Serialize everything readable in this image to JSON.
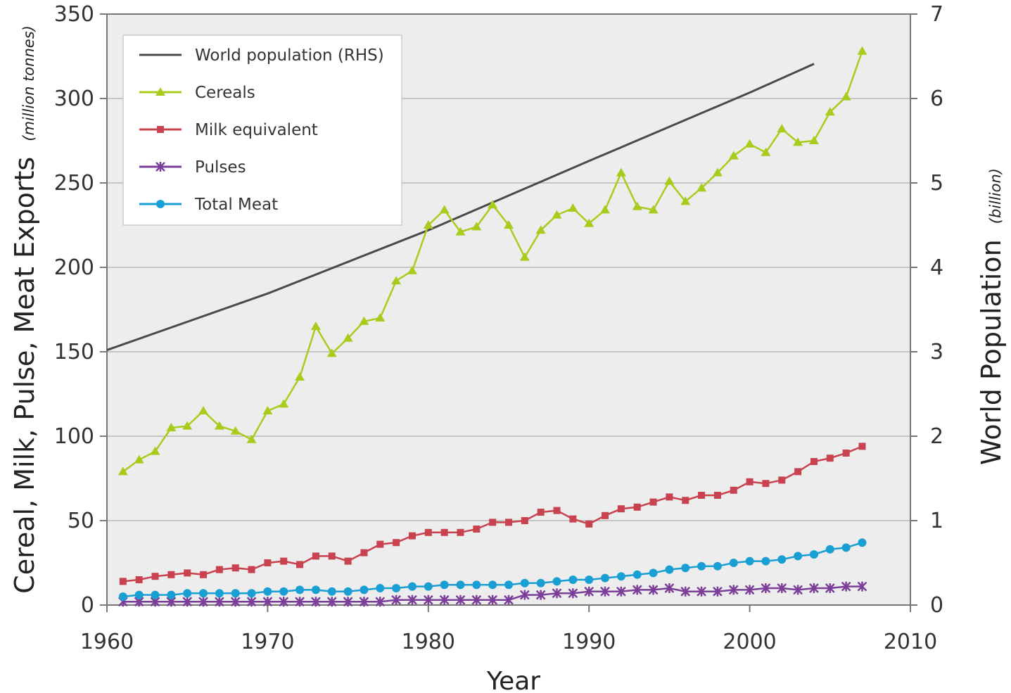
{
  "chart_data": {
    "type": "line",
    "xlabel": "Year",
    "ylabel": "Cereal, Milk, Pulse, Meat Exports",
    "ylabel_unit": "(million tonnes)",
    "y2label": "World Population",
    "y2label_unit": "(billion)",
    "xlim": [
      1960,
      2010
    ],
    "ylim": [
      0,
      350
    ],
    "y2lim": [
      0,
      7
    ],
    "xticks": [
      "1960",
      "1970",
      "1980",
      "1990",
      "2000",
      "2010"
    ],
    "yticks": [
      "0",
      "50",
      "100",
      "150",
      "200",
      "250",
      "300",
      "350"
    ],
    "y2ticks": [
      "0",
      "1",
      "2",
      "3",
      "4",
      "5",
      "6",
      "7"
    ],
    "grid": true,
    "legend_position": "top-left",
    "colors": {
      "population": "#4a4a4a",
      "cereals": "#a8cc1c",
      "milk": "#c9424f",
      "pulses": "#7b3f9a",
      "meat": "#1a9fd4",
      "plot_background": "#ededed",
      "gridline": "#b8b8b8"
    },
    "series": [
      {
        "name": "World population (RHS)",
        "key": "population",
        "axis": "right",
        "marker": "none",
        "x": [
          1960,
          1970,
          1980,
          1990,
          2000,
          2004
        ],
        "values": [
          3.02,
          3.69,
          4.44,
          5.26,
          6.07,
          6.41
        ]
      },
      {
        "name": "Cereals",
        "key": "cereals",
        "axis": "left",
        "marker": "triangle",
        "x": [
          1961,
          1962,
          1963,
          1964,
          1965,
          1966,
          1967,
          1968,
          1969,
          1970,
          1971,
          1972,
          1973,
          1974,
          1975,
          1976,
          1977,
          1978,
          1979,
          1980,
          1981,
          1982,
          1983,
          1984,
          1985,
          1986,
          1987,
          1988,
          1989,
          1990,
          1991,
          1992,
          1993,
          1994,
          1995,
          1996,
          1997,
          1998,
          1999,
          2000,
          2001,
          2002,
          2003,
          2004,
          2005,
          2006,
          2007
        ],
        "values": [
          79,
          86,
          91,
          105,
          106,
          115,
          106,
          103,
          98,
          115,
          119,
          135,
          165,
          149,
          158,
          168,
          170,
          192,
          198,
          225,
          234,
          221,
          224,
          237,
          225,
          206,
          222,
          231,
          235,
          226,
          234,
          256,
          236,
          234,
          251,
          239,
          247,
          256,
          266,
          273,
          268,
          282,
          274,
          275,
          292,
          301,
          328
        ]
      },
      {
        "name": "Milk equivalent",
        "key": "milk",
        "axis": "left",
        "marker": "square",
        "x": [
          1961,
          1962,
          1963,
          1964,
          1965,
          1966,
          1967,
          1968,
          1969,
          1970,
          1971,
          1972,
          1973,
          1974,
          1975,
          1976,
          1977,
          1978,
          1979,
          1980,
          1981,
          1982,
          1983,
          1984,
          1985,
          1986,
          1987,
          1988,
          1989,
          1990,
          1991,
          1992,
          1993,
          1994,
          1995,
          1996,
          1997,
          1998,
          1999,
          2000,
          2001,
          2002,
          2003,
          2004,
          2005,
          2006,
          2007
        ],
        "values": [
          14,
          15,
          17,
          18,
          19,
          18,
          21,
          22,
          21,
          25,
          26,
          24,
          29,
          29,
          26,
          31,
          36,
          37,
          41,
          43,
          43,
          43,
          45,
          49,
          49,
          50,
          55,
          56,
          51,
          48,
          53,
          57,
          58,
          61,
          64,
          62,
          65,
          65,
          68,
          73,
          72,
          74,
          79,
          85,
          87,
          90,
          94
        ]
      },
      {
        "name": "Pulses",
        "key": "pulses",
        "axis": "left",
        "marker": "star",
        "x": [
          1961,
          1962,
          1963,
          1964,
          1965,
          1966,
          1967,
          1968,
          1969,
          1970,
          1971,
          1972,
          1973,
          1974,
          1975,
          1976,
          1977,
          1978,
          1979,
          1980,
          1981,
          1982,
          1983,
          1984,
          1985,
          1986,
          1987,
          1988,
          1989,
          1990,
          1991,
          1992,
          1993,
          1994,
          1995,
          1996,
          1997,
          1998,
          1999,
          2000,
          2001,
          2002,
          2003,
          2004,
          2005,
          2006,
          2007
        ],
        "values": [
          2,
          2,
          2,
          2,
          2,
          2,
          2,
          2,
          2,
          2,
          2,
          2,
          2,
          2,
          2,
          2,
          2,
          3,
          3,
          3,
          3,
          3,
          3,
          3,
          3,
          6,
          6,
          7,
          7,
          8,
          8,
          8,
          9,
          9,
          10,
          8,
          8,
          8,
          9,
          9,
          10,
          10,
          9,
          10,
          10,
          11,
          11
        ]
      },
      {
        "name": "Total Meat",
        "key": "meat",
        "axis": "left",
        "marker": "circle",
        "x": [
          1961,
          1962,
          1963,
          1964,
          1965,
          1966,
          1967,
          1968,
          1969,
          1970,
          1971,
          1972,
          1973,
          1974,
          1975,
          1976,
          1977,
          1978,
          1979,
          1980,
          1981,
          1982,
          1983,
          1984,
          1985,
          1986,
          1987,
          1988,
          1989,
          1990,
          1991,
          1992,
          1993,
          1994,
          1995,
          1996,
          1997,
          1998,
          1999,
          2000,
          2001,
          2002,
          2003,
          2004,
          2005,
          2006,
          2007
        ],
        "values": [
          5,
          6,
          6,
          6,
          7,
          7,
          7,
          7,
          7,
          8,
          8,
          9,
          9,
          8,
          8,
          9,
          10,
          10,
          11,
          11,
          12,
          12,
          12,
          12,
          12,
          13,
          13,
          14,
          15,
          15,
          16,
          17,
          18,
          19,
          21,
          22,
          23,
          23,
          25,
          26,
          26,
          27,
          29,
          30,
          33,
          34,
          37
        ]
      }
    ]
  }
}
